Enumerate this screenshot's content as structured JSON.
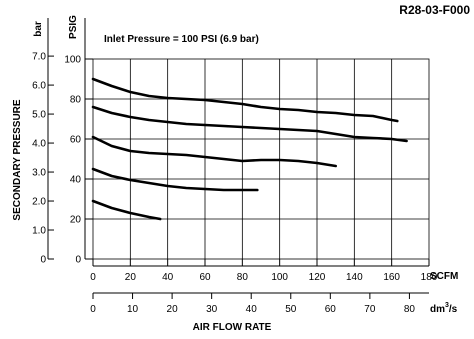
{
  "chart_data": {
    "type": "line",
    "model_code": "R28-03-F000",
    "annotation": "Inlet Pressure = 100 PSI (6.9 bar)",
    "ylabel": "SECONDARY PRESSURE",
    "y_unit_psig": "PSIG",
    "y_unit_bar": "bar",
    "xlabel": "AIR FLOW RATE",
    "x_unit_scfm": "SCFM",
    "x_unit_dm3s_base": "dm",
    "x_unit_dm3s_exp": "3",
    "x_unit_dm3s_tail": "/s",
    "ylim_psig": [
      0,
      100
    ],
    "xlim_scfm": [
      0,
      180
    ],
    "xlim_dm3s": [
      0,
      85
    ],
    "grid": true,
    "psig_ticks": [
      "0",
      "20",
      "40",
      "60",
      "80",
      "100"
    ],
    "bar_ticks": [
      "0",
      "1.0",
      "2.0",
      "3.0",
      "4.0",
      "5.0",
      "6.0",
      "7.0"
    ],
    "scfm_ticks": [
      "0",
      "20",
      "40",
      "60",
      "80",
      "100",
      "120",
      "140",
      "160",
      "180"
    ],
    "dm3s_ticks": [
      "0",
      "10",
      "20",
      "30",
      "40",
      "50",
      "60",
      "70",
      "80"
    ],
    "series": [
      {
        "x": [
          0,
          10,
          20,
          30,
          40,
          50,
          60,
          70,
          80,
          90,
          100,
          110,
          120,
          130,
          140,
          150,
          160,
          163
        ],
        "y": [
          90,
          86.5,
          83.5,
          81.5,
          80.5,
          80,
          79.5,
          78.5,
          77.5,
          76,
          75,
          74.5,
          73.5,
          73,
          72,
          71.5,
          69.5,
          69
        ]
      },
      {
        "x": [
          0,
          10,
          20,
          30,
          40,
          50,
          60,
          70,
          80,
          90,
          100,
          110,
          120,
          130,
          140,
          150,
          160,
          168
        ],
        "y": [
          76,
          73,
          71,
          69.5,
          68.5,
          67.5,
          67,
          66.5,
          66,
          65.5,
          65,
          64.5,
          64,
          62.5,
          61,
          60.5,
          60,
          59
        ]
      },
      {
        "x": [
          0,
          10,
          20,
          30,
          40,
          50,
          60,
          70,
          80,
          90,
          100,
          110,
          120,
          130
        ],
        "y": [
          61,
          56.5,
          54,
          53,
          52.5,
          52,
          51,
          50,
          49,
          49.5,
          49.5,
          49,
          48,
          46.5
        ]
      },
      {
        "x": [
          0,
          10,
          20,
          30,
          40,
          50,
          60,
          70,
          80,
          88
        ],
        "y": [
          45,
          41.5,
          39.5,
          38,
          36.5,
          35.5,
          35,
          34.5,
          34.5,
          34.5
        ]
      },
      {
        "x": [
          0,
          10,
          20,
          30,
          36
        ],
        "y": [
          29,
          25.5,
          23,
          21,
          20
        ]
      }
    ]
  }
}
